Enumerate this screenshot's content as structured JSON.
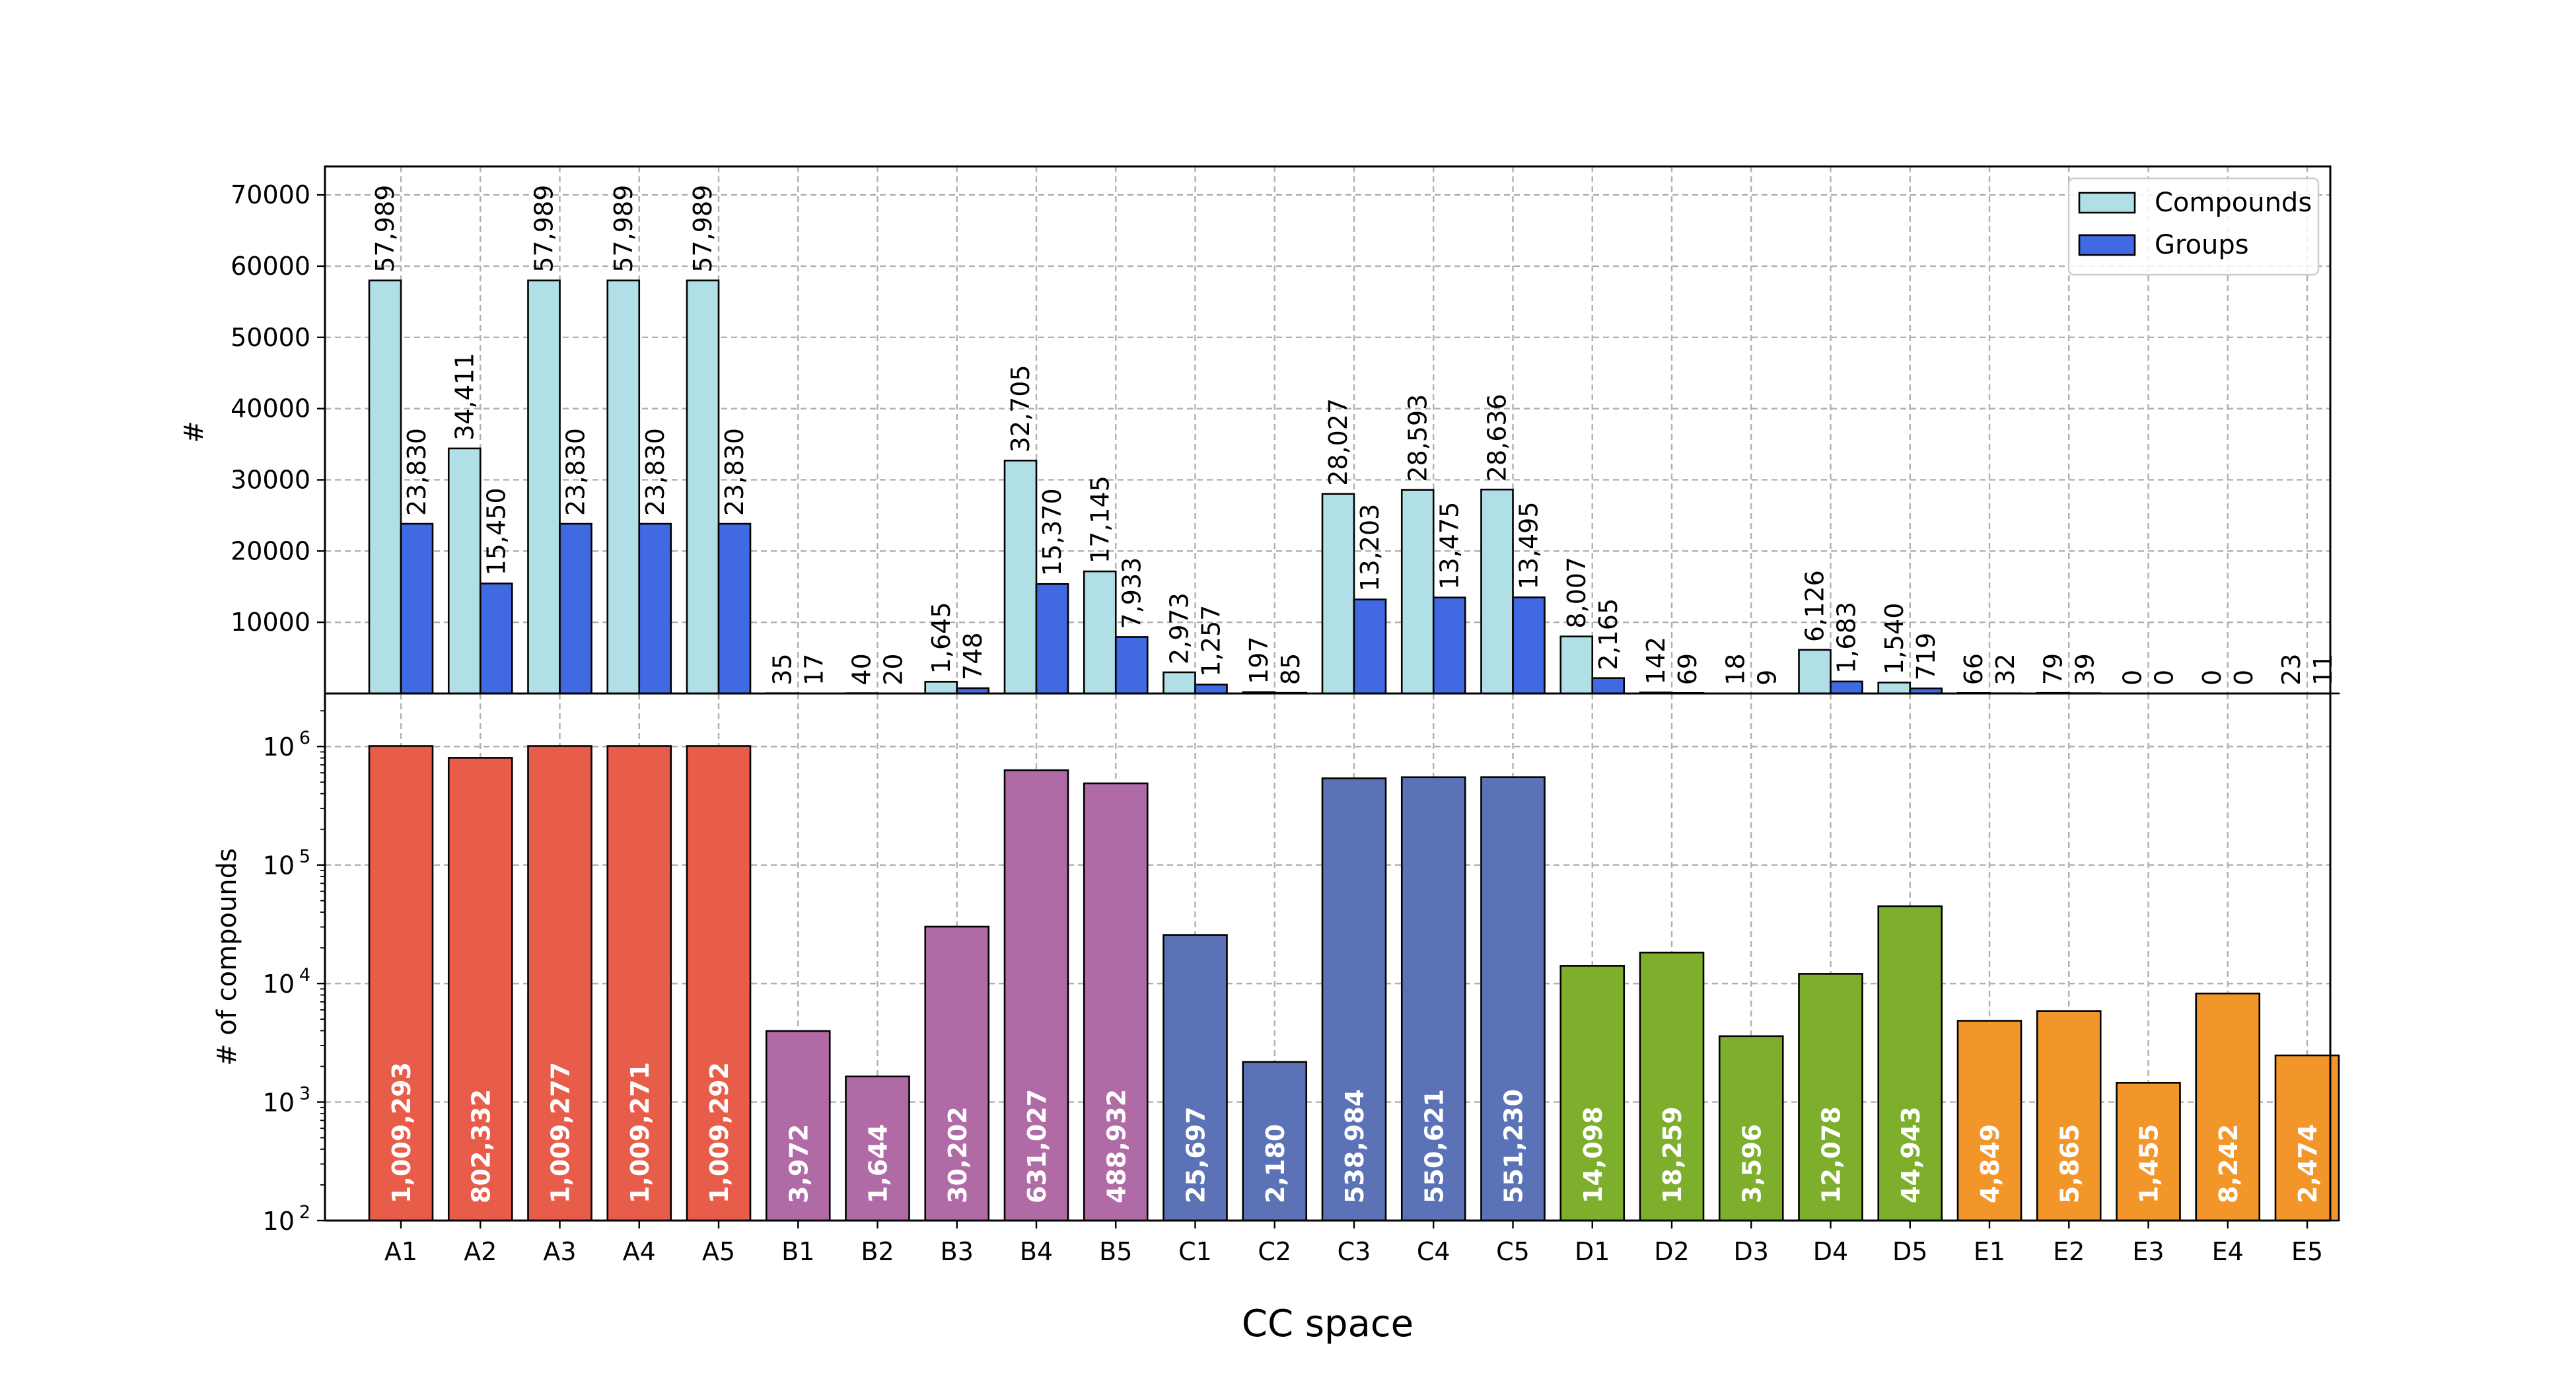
{
  "chart_data": [
    {
      "type": "bar",
      "categories": [
        "A1",
        "A2",
        "A3",
        "A4",
        "A5",
        "B1",
        "B2",
        "B3",
        "B4",
        "B5",
        "C1",
        "C2",
        "C3",
        "C4",
        "C5",
        "D1",
        "D2",
        "D3",
        "D4",
        "D5",
        "E1",
        "E2",
        "E3",
        "E4",
        "E5"
      ],
      "series": [
        {
          "name": "Compounds",
          "color": "#b0e0e6",
          "values": [
            57989,
            34411,
            57989,
            57989,
            57989,
            35,
            40,
            1645,
            32705,
            17145,
            2973,
            197,
            28027,
            28593,
            28636,
            8007,
            142,
            18,
            6126,
            1540,
            66,
            79,
            0,
            0,
            23
          ]
        },
        {
          "name": "Groups",
          "color": "#4169e1",
          "values": [
            23830,
            15450,
            23830,
            23830,
            23830,
            17,
            20,
            748,
            15370,
            7933,
            1257,
            85,
            13203,
            13475,
            13495,
            2165,
            69,
            9,
            1683,
            719,
            32,
            39,
            0,
            0,
            11
          ]
        }
      ],
      "data_labels": {
        "Compounds": [
          "57,989",
          "34,411",
          "57,989",
          "57,989",
          "57,989",
          "35",
          "40",
          "1,645",
          "32,705",
          "17,145",
          "2,973",
          "197",
          "28,027",
          "28,593",
          "28,636",
          "8,007",
          "142",
          "18",
          "6,126",
          "1,540",
          "66",
          "79",
          "0",
          "0",
          "23"
        ],
        "Groups": [
          "23,830",
          "15,450",
          "23,830",
          "23,830",
          "23,830",
          "17",
          "20",
          "748",
          "15,370",
          "7,933",
          "1,257",
          "85",
          "13,203",
          "13,475",
          "13,495",
          "2,165",
          "69",
          "9",
          "1,683",
          "719",
          "32",
          "39",
          "0",
          "0",
          "11"
        ]
      },
      "ylabel": "#",
      "ylim": [
        0,
        74000
      ],
      "yticks": [
        10000,
        20000,
        30000,
        40000,
        50000,
        60000,
        70000
      ],
      "ytick_labels": [
        "10000",
        "20000",
        "30000",
        "40000",
        "50000",
        "60000",
        "70000"
      ],
      "grid": true,
      "legend_position": "top-right"
    },
    {
      "type": "bar",
      "categories": [
        "A1",
        "A2",
        "A3",
        "A4",
        "A5",
        "B1",
        "B2",
        "B3",
        "B4",
        "B5",
        "C1",
        "C2",
        "C3",
        "C4",
        "C5",
        "D1",
        "D2",
        "D3",
        "D4",
        "D5",
        "E1",
        "E2",
        "E3",
        "E4",
        "E5"
      ],
      "values": [
        1009293,
        802332,
        1009277,
        1009271,
        1009292,
        3972,
        1644,
        30202,
        631027,
        488932,
        25697,
        2180,
        538984,
        550621,
        551230,
        14098,
        18259,
        3596,
        12078,
        44943,
        4849,
        5865,
        1455,
        8242,
        2474
      ],
      "data_labels": [
        "1,009,293",
        "802,332",
        "1,009,277",
        "1,009,271",
        "1,009,292",
        "3,972",
        "1,644",
        "30,202",
        "631,027",
        "488,932",
        "25,697",
        "2,180",
        "538,984",
        "550,621",
        "551,230",
        "14,098",
        "18,259",
        "3,596",
        "12,078",
        "44,943",
        "4,849",
        "5,865",
        "1,455",
        "8,242",
        "2,474"
      ],
      "group_colors": {
        "A": "#e85c4a",
        "B": "#b06ba6",
        "C": "#5b73b6",
        "D": "#7daf2c",
        "E": "#f3962a"
      },
      "ylabel": "# of compounds",
      "xlabel": "CC space",
      "yscale": "log",
      "ylim": [
        100,
        2800000
      ],
      "yticks": [
        100,
        1000,
        10000,
        100000,
        1000000
      ],
      "ytick_labels": [
        {
          "base": "10",
          "exp": "2"
        },
        {
          "base": "10",
          "exp": "3"
        },
        {
          "base": "10",
          "exp": "4"
        },
        {
          "base": "10",
          "exp": "5"
        },
        {
          "base": "10",
          "exp": "6"
        }
      ],
      "grid": true
    }
  ]
}
